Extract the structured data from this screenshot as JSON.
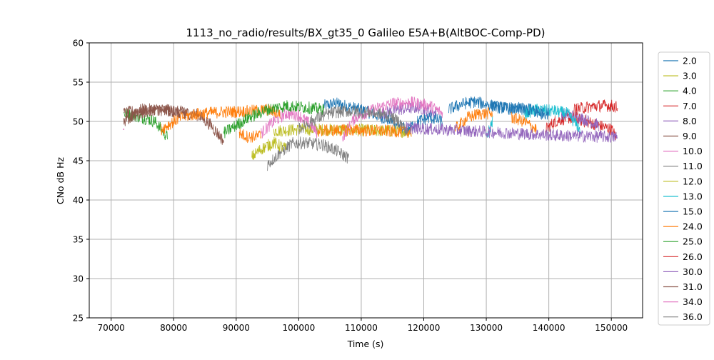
{
  "chart_data": {
    "type": "line",
    "title": "1113_no_radio/results/BX_gt35_0 Galileo E5A+B(AltBOC-Comp-PD)",
    "xlabel": "Time (s)",
    "ylabel": "CNo dB Hz",
    "xlim": [
      66500,
      155000
    ],
    "ylim": [
      25,
      60
    ],
    "xticks": [
      70000,
      80000,
      90000,
      100000,
      110000,
      120000,
      130000,
      140000,
      150000
    ],
    "yticks": [
      25,
      30,
      35,
      40,
      45,
      50,
      55,
      60
    ],
    "grid": true,
    "legend_position": "right, outside plot",
    "series": [
      {
        "name": "2.0",
        "color": "#1f77b4",
        "segments": [
          [
            {
              "x": 104000,
              "y": 52
            },
            {
              "x": 106000,
              "y": 52.3
            },
            {
              "x": 110000,
              "y": 51.5
            },
            {
              "x": 115000,
              "y": 50
            },
            {
              "x": 117000,
              "y": 49
            }
          ],
          [
            {
              "x": 131000,
              "y": 51.8
            },
            {
              "x": 134000,
              "y": 51.8
            },
            {
              "x": 137000,
              "y": 51.5
            },
            {
              "x": 139000,
              "y": 51
            }
          ]
        ]
      },
      {
        "name": "3.0",
        "color": "#bcbd22",
        "segments": [
          [
            {
              "x": 96000,
              "y": 48.8
            },
            {
              "x": 101000,
              "y": 49
            },
            {
              "x": 110000,
              "y": 48.9
            },
            {
              "x": 118000,
              "y": 48.7
            }
          ]
        ]
      },
      {
        "name": "4.0",
        "color": "#2ca02c",
        "segments": [
          [
            {
              "x": 72000,
              "y": 51
            },
            {
              "x": 75000,
              "y": 50.5
            },
            {
              "x": 77000,
              "y": 50
            },
            {
              "x": 79000,
              "y": 48
            }
          ]
        ]
      },
      {
        "name": "7.0",
        "color": "#d62728",
        "segments": [
          [
            {
              "x": 139500,
              "y": 49
            },
            {
              "x": 141000,
              "y": 50
            },
            {
              "x": 143000,
              "y": 50.5
            },
            {
              "x": 146000,
              "y": 50
            },
            {
              "x": 148000,
              "y": 49.5
            },
            {
              "x": 150000,
              "y": 49
            },
            {
              "x": 150800,
              "y": 48
            }
          ]
        ]
      },
      {
        "name": "8.0",
        "color": "#9467bd",
        "segments": [
          [
            {
              "x": 113000,
              "y": 51
            },
            {
              "x": 116000,
              "y": 51.5
            },
            {
              "x": 119000,
              "y": 51.8
            },
            {
              "x": 122000,
              "y": 51
            }
          ],
          [
            {
              "x": 142000,
              "y": 51
            },
            {
              "x": 145000,
              "y": 50.5
            },
            {
              "x": 148000,
              "y": 49.5
            }
          ]
        ]
      },
      {
        "name": "9.0",
        "color": "#8c564b",
        "segments": [
          [
            {
              "x": 72000,
              "y": 51
            },
            {
              "x": 75000,
              "y": 51.5
            },
            {
              "x": 78000,
              "y": 51.5
            },
            {
              "x": 81000,
              "y": 51.2
            },
            {
              "x": 84000,
              "y": 50.8
            },
            {
              "x": 86000,
              "y": 49.5
            },
            {
              "x": 88000,
              "y": 47.5
            }
          ]
        ]
      },
      {
        "name": "10.0",
        "color": "#e377c2",
        "segments": [
          [
            {
              "x": 94000,
              "y": 48.5
            },
            {
              "x": 96000,
              "y": 50
            },
            {
              "x": 98000,
              "y": 51
            },
            {
              "x": 100000,
              "y": 50.8
            },
            {
              "x": 102000,
              "y": 49.5
            },
            {
              "x": 103000,
              "y": 48.5
            }
          ],
          [
            {
              "x": 107000,
              "y": 48
            },
            {
              "x": 109000,
              "y": 50.5
            },
            {
              "x": 112000,
              "y": 51.5
            },
            {
              "x": 115000,
              "y": 52.3
            },
            {
              "x": 118000,
              "y": 52.4
            },
            {
              "x": 121000,
              "y": 52
            },
            {
              "x": 123000,
              "y": 51
            }
          ]
        ]
      },
      {
        "name": "11.0",
        "color": "#7f7f7f",
        "segments": [
          [
            {
              "x": 95000,
              "y": 44.5
            },
            {
              "x": 97000,
              "y": 46
            },
            {
              "x": 99000,
              "y": 47.2
            },
            {
              "x": 101000,
              "y": 47.3
            },
            {
              "x": 104000,
              "y": 47
            },
            {
              "x": 106000,
              "y": 46.3
            },
            {
              "x": 108000,
              "y": 45.3
            }
          ]
        ]
      },
      {
        "name": "12.0",
        "color": "#bcbd22",
        "segments": [
          [
            {
              "x": 92500,
              "y": 45.5
            },
            {
              "x": 94000,
              "y": 46.5
            },
            {
              "x": 96000,
              "y": 47.3
            },
            {
              "x": 98000,
              "y": 46.5
            }
          ]
        ]
      },
      {
        "name": "13.0",
        "color": "#17becf",
        "segments": [
          [
            {
              "x": 130000,
              "y": 48
            },
            {
              "x": 131000,
              "y": 50
            }
          ],
          [
            {
              "x": 136000,
              "y": 51
            },
            {
              "x": 138000,
              "y": 51.5
            },
            {
              "x": 141000,
              "y": 51.3
            },
            {
              "x": 143000,
              "y": 51
            },
            {
              "x": 145000,
              "y": 49
            }
          ]
        ]
      },
      {
        "name": "15.0",
        "color": "#1f77b4",
        "segments": [
          [
            {
              "x": 117500,
              "y": 49
            },
            {
              "x": 119000,
              "y": 50
            },
            {
              "x": 121000,
              "y": 50.5
            },
            {
              "x": 123000,
              "y": 50
            }
          ],
          [
            {
              "x": 124000,
              "y": 51.5
            },
            {
              "x": 126000,
              "y": 52.2
            },
            {
              "x": 128000,
              "y": 52.5
            },
            {
              "x": 130000,
              "y": 52.2
            },
            {
              "x": 132000,
              "y": 51.8
            },
            {
              "x": 134000,
              "y": 51.6
            },
            {
              "x": 136000,
              "y": 51.5
            },
            {
              "x": 138000,
              "y": 51.3
            },
            {
              "x": 140000,
              "y": 51
            }
          ]
        ]
      },
      {
        "name": "24.0",
        "color": "#ff7f0e",
        "segments": [
          [
            {
              "x": 78000,
              "y": 49
            },
            {
              "x": 81000,
              "y": 50.5
            },
            {
              "x": 84000,
              "y": 51
            },
            {
              "x": 88000,
              "y": 51.2
            },
            {
              "x": 92000,
              "y": 51.3
            },
            {
              "x": 95000,
              "y": 51.5
            },
            {
              "x": 97000,
              "y": 51
            }
          ],
          [
            {
              "x": 90500,
              "y": 48.5
            },
            {
              "x": 92000,
              "y": 48
            },
            {
              "x": 94000,
              "y": 48.2
            }
          ],
          [
            {
              "x": 103000,
              "y": 48.8
            },
            {
              "x": 108000,
              "y": 48.9
            },
            {
              "x": 113000,
              "y": 48.8
            },
            {
              "x": 118000,
              "y": 48.7
            }
          ],
          [
            {
              "x": 125000,
              "y": 49
            },
            {
              "x": 127000,
              "y": 50.5
            },
            {
              "x": 129000,
              "y": 51
            },
            {
              "x": 131000,
              "y": 51
            }
          ],
          [
            {
              "x": 134000,
              "y": 50.5
            },
            {
              "x": 136000,
              "y": 50
            },
            {
              "x": 138000,
              "y": 49
            }
          ]
        ]
      },
      {
        "name": "25.0",
        "color": "#2ca02c",
        "segments": [
          [
            {
              "x": 88000,
              "y": 48.5
            },
            {
              "x": 90000,
              "y": 49.5
            },
            {
              "x": 92000,
              "y": 50.5
            },
            {
              "x": 95000,
              "y": 51.5
            },
            {
              "x": 98000,
              "y": 52
            },
            {
              "x": 101000,
              "y": 51.8
            },
            {
              "x": 104000,
              "y": 51.5
            }
          ]
        ]
      },
      {
        "name": "26.0",
        "color": "#d62728",
        "segments": [
          [
            {
              "x": 144000,
              "y": 51.5
            },
            {
              "x": 146000,
              "y": 51.8
            },
            {
              "x": 148000,
              "y": 52
            },
            {
              "x": 150000,
              "y": 52
            },
            {
              "x": 151000,
              "y": 51.8
            }
          ]
        ]
      },
      {
        "name": "30.0",
        "color": "#9467bd",
        "segments": [
          [
            {
              "x": 117000,
              "y": 49.2
            },
            {
              "x": 122000,
              "y": 49
            },
            {
              "x": 127000,
              "y": 48.8
            },
            {
              "x": 132000,
              "y": 48.6
            },
            {
              "x": 137000,
              "y": 48.4
            },
            {
              "x": 142000,
              "y": 48.2
            },
            {
              "x": 147000,
              "y": 48.1
            },
            {
              "x": 151000,
              "y": 48
            }
          ]
        ]
      },
      {
        "name": "31.0",
        "color": "#8c564b",
        "segments": [
          [
            {
              "x": 72000,
              "y": 50
            },
            {
              "x": 74000,
              "y": 51
            },
            {
              "x": 77000,
              "y": 51.5
            },
            {
              "x": 80000,
              "y": 51.3
            },
            {
              "x": 82000,
              "y": 51
            }
          ]
        ]
      },
      {
        "name": "34.0",
        "color": "#e377c2",
        "segments": [
          [
            {
              "x": 72000,
              "y": 49
            }
          ]
        ]
      },
      {
        "name": "36.0",
        "color": "#7f7f7f",
        "segments": [
          [
            {
              "x": 100000,
              "y": 49
            },
            {
              "x": 102000,
              "y": 50
            },
            {
              "x": 104000,
              "y": 50.8
            },
            {
              "x": 106000,
              "y": 51.2
            },
            {
              "x": 108000,
              "y": 51.3
            },
            {
              "x": 111000,
              "y": 51.2
            },
            {
              "x": 114000,
              "y": 50.8
            },
            {
              "x": 116000,
              "y": 50
            },
            {
              "x": 117500,
              "y": 48.5
            }
          ]
        ]
      }
    ]
  }
}
